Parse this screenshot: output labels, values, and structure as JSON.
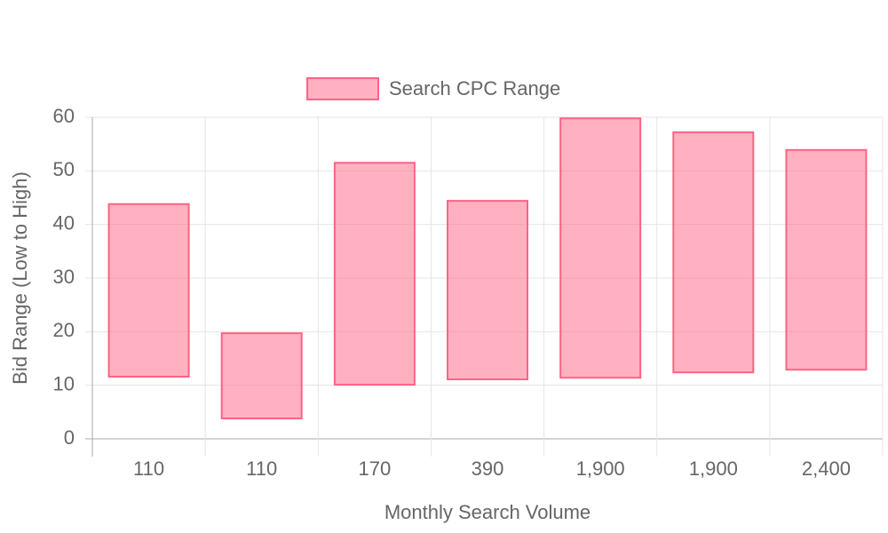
{
  "chart_data": {
    "type": "floating-bar",
    "x_label": "Monthly Search Volume",
    "y_label": "Bid Range (Low to High)",
    "categories": [
      "110",
      "110",
      "170",
      "390",
      "1,900",
      "1,900",
      "2,400"
    ],
    "series": [
      {
        "name": "Search CPC Range",
        "color": "#ff6384",
        "low": [
          11.6,
          3.8,
          10.1,
          11.1,
          11.4,
          12.4,
          12.9
        ],
        "high": [
          43.8,
          19.7,
          51.5,
          44.4,
          59.8,
          57.2,
          53.9
        ]
      }
    ],
    "ylim": [
      0,
      60
    ],
    "yticks": [
      0,
      10,
      20,
      30,
      40,
      50,
      60
    ],
    "grid": true,
    "legend": "top"
  }
}
